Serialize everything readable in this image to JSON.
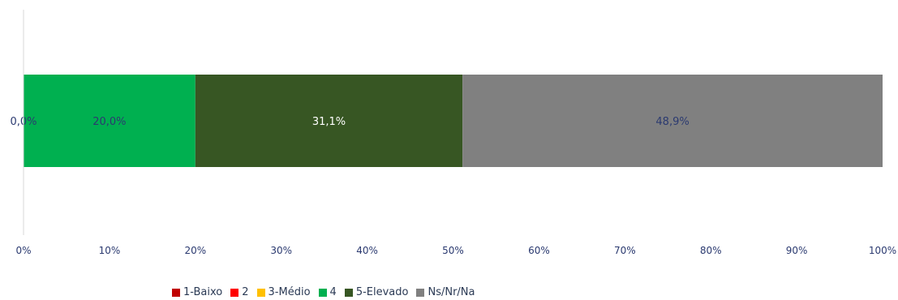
{
  "chart_data": {
    "type": "bar",
    "orientation": "horizontal-stacked-100",
    "categories": [
      ""
    ],
    "series": [
      {
        "name": "1-Baixo",
        "values": [
          0.0
        ],
        "color": "#c00000",
        "label": ""
      },
      {
        "name": "2",
        "values": [
          0.0
        ],
        "color": "#ff0000",
        "label": ""
      },
      {
        "name": "3-Médio",
        "values": [
          0.0
        ],
        "color": "#ffc000",
        "label": ""
      },
      {
        "name": "4",
        "values": [
          20.0
        ],
        "color": "#00b050",
        "label": "20,0%"
      },
      {
        "name": "5-Elevado",
        "values": [
          31.1
        ],
        "color": "#375623",
        "label": "31,1%"
      },
      {
        "name": "Ns/Nr/Na",
        "values": [
          48.9
        ],
        "color": "#808080",
        "label": "48,9%"
      }
    ],
    "extra_labels": [
      "0,0%"
    ],
    "xlim": [
      0,
      100
    ],
    "x_ticks": [
      "0%",
      "10%",
      "20%",
      "30%",
      "40%",
      "50%",
      "60%",
      "70%",
      "80%",
      "90%",
      "100%"
    ],
    "title": "",
    "xlabel": "",
    "ylabel": "",
    "grid": false,
    "legend_position": "bottom"
  }
}
